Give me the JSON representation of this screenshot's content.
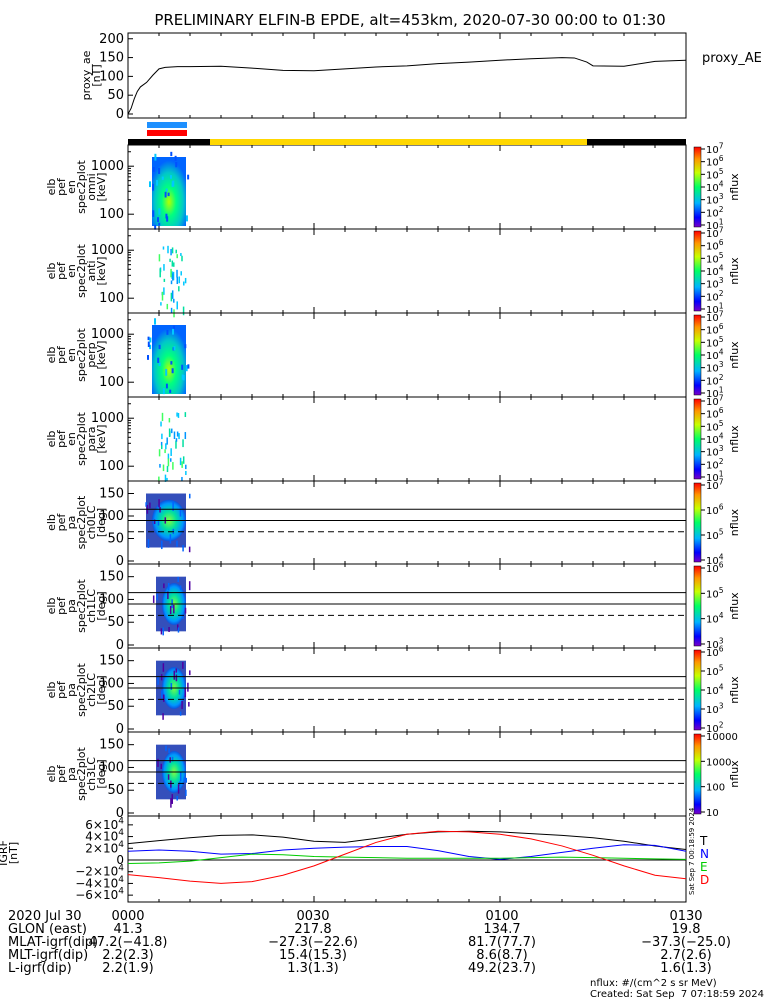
{
  "title": "PRELIMINARY ELFIN-B EPDE, alt=453km, 2020-07-30 00:00 to 01:30",
  "chart_data": [
    {
      "type": "line",
      "ylabel": [
        "proxy_ae",
        "[nT]"
      ],
      "legend": "proxy_AE",
      "yticks": [
        "0",
        "50",
        "100",
        "150",
        "200"
      ],
      "ylim": [
        0,
        210
      ],
      "xlim_min": [
        0,
        90
      ],
      "series": [
        {
          "name": "proxy_AE",
          "x": [
            0,
            0.5,
            1,
            1.5,
            2,
            3,
            4,
            5,
            6,
            7,
            8,
            10,
            15,
            20,
            25,
            30,
            35,
            40,
            45,
            50,
            55,
            60,
            65,
            70,
            72,
            74,
            75,
            80,
            85,
            90
          ],
          "y": [
            0,
            15,
            40,
            60,
            72,
            84,
            103,
            120,
            124,
            125,
            126,
            126,
            127,
            122,
            116,
            115,
            120,
            125,
            128,
            134,
            138,
            143,
            147,
            150,
            149,
            138,
            128,
            127,
            140,
            143
          ]
        }
      ]
    },
    {
      "type": "spectrogram",
      "ylabel": [
        "elb",
        "pef",
        "en",
        "spec2plot",
        "omni",
        "[keV]"
      ],
      "yticks": [
        "100",
        "1000"
      ],
      "cbar_ticks": [
        "10^1",
        "10^2",
        "10^3",
        "10^4",
        "10^5",
        "10^6",
        "10^7"
      ],
      "cbar_label": "nflux"
    },
    {
      "type": "spectrogram",
      "ylabel": [
        "elb",
        "pef",
        "en",
        "spec2plot",
        "anti",
        "[keV]"
      ],
      "yticks": [
        "100",
        "1000"
      ],
      "cbar_ticks": [
        "10^1",
        "10^2",
        "10^3",
        "10^4",
        "10^5",
        "10^6",
        "10^7"
      ],
      "cbar_label": "nflux"
    },
    {
      "type": "spectrogram",
      "ylabel": [
        "elb",
        "pef",
        "en",
        "spec2plot",
        "perp",
        "[keV]"
      ],
      "yticks": [
        "100",
        "1000"
      ],
      "cbar_ticks": [
        "10^1",
        "10^2",
        "10^3",
        "10^4",
        "10^5",
        "10^6",
        "10^7"
      ],
      "cbar_label": "nflux"
    },
    {
      "type": "spectrogram",
      "ylabel": [
        "elb",
        "pef",
        "en",
        "spec2plot",
        "para",
        "[keV]"
      ],
      "yticks": [
        "100",
        "1000"
      ],
      "cbar_ticks": [
        "10^1",
        "10^2",
        "10^3",
        "10^4",
        "10^5",
        "10^6",
        "10^7"
      ],
      "cbar_label": "nflux"
    },
    {
      "type": "spectrogram",
      "ylabel": [
        "elb",
        "pef",
        "pa",
        "spec2plot",
        "ch0LC",
        "[deg]"
      ],
      "yticks": [
        "0",
        "50",
        "100",
        "150"
      ],
      "cbar_ticks": [
        "10^4",
        "10^5",
        "10^6",
        "10^7"
      ],
      "cbar_label": "nflux",
      "reference_lines_deg": [
        115,
        90,
        65
      ]
    },
    {
      "type": "spectrogram",
      "ylabel": [
        "elb",
        "pef",
        "pa",
        "spec2plot",
        "ch1LC",
        "[deg]"
      ],
      "yticks": [
        "0",
        "50",
        "100",
        "150"
      ],
      "cbar_ticks": [
        "10^3",
        "10^4",
        "10^5",
        "10^6"
      ],
      "cbar_label": "nflux",
      "reference_lines_deg": [
        115,
        90,
        65
      ]
    },
    {
      "type": "spectrogram",
      "ylabel": [
        "elb",
        "pef",
        "pa",
        "spec2plot",
        "ch2LC",
        "[deg]"
      ],
      "yticks": [
        "0",
        "50",
        "100",
        "150"
      ],
      "cbar_ticks": [
        "10^2",
        "10^3",
        "10^4",
        "10^5",
        "10^6"
      ],
      "cbar_label": "nflux",
      "reference_lines_deg": [
        115,
        90,
        65
      ]
    },
    {
      "type": "spectrogram",
      "ylabel": [
        "elb",
        "pef",
        "pa",
        "spec2plot",
        "ch3LC",
        "[deg]"
      ],
      "yticks": [
        "0",
        "50",
        "100",
        "150"
      ],
      "cbar_ticks": [
        "10",
        "100",
        "1000",
        "10000"
      ],
      "cbar_label": "nflux",
      "reference_lines_deg": [
        115,
        90,
        65
      ]
    },
    {
      "type": "line",
      "ylabel": [
        "IGRF",
        "[nT]"
      ],
      "yticks": [
        "−6×10^4",
        "−4×10^4",
        "−2×10^4",
        "0",
        "2×10^4",
        "4×10^4",
        "6×10^4"
      ],
      "ylim": [
        -70000,
        70000
      ],
      "legend": [
        "T",
        "N",
        "E",
        "D"
      ],
      "colors": [
        "#000000",
        "#0000ff",
        "#00cc00",
        "#ff0000"
      ],
      "x": [
        0,
        5,
        10,
        15,
        20,
        25,
        30,
        35,
        40,
        45,
        50,
        55,
        60,
        65,
        70,
        75,
        80,
        85,
        90
      ],
      "series": [
        {
          "name": "T",
          "y": [
            28000,
            33000,
            38000,
            42000,
            43000,
            39000,
            32000,
            30000,
            37000,
            44000,
            48000,
            49000,
            48000,
            45000,
            42000,
            38000,
            32000,
            24000,
            18000
          ]
        },
        {
          "name": "N",
          "y": [
            15000,
            17000,
            15000,
            10000,
            11000,
            17000,
            20000,
            22000,
            23000,
            23000,
            16000,
            6000,
            1000,
            6000,
            13000,
            20000,
            26000,
            25000,
            15000
          ]
        },
        {
          "name": "E",
          "y": [
            -6000,
            -5000,
            -2000,
            4000,
            10000,
            9000,
            6000,
            5000,
            4000,
            3000,
            3000,
            3000,
            3000,
            4000,
            5000,
            4000,
            3000,
            2000,
            1000
          ]
        },
        {
          "name": "D",
          "y": [
            -25000,
            -30000,
            -36000,
            -40000,
            -37000,
            -26000,
            -10000,
            10000,
            30000,
            44000,
            49000,
            48000,
            44000,
            36000,
            24000,
            8000,
            -10000,
            -26000,
            -32000
          ]
        }
      ]
    }
  ],
  "bars": {
    "blue": "#1e90ff",
    "red": "#ff0000",
    "black": "#000000",
    "yellow": "#ffd700"
  },
  "footer": {
    "rows": [
      {
        "label": "2020 Jul 30",
        "vals": [
          "0000",
          "0030",
          "0100",
          "0130"
        ]
      },
      {
        "label": "GLON (east)",
        "vals": [
          "41.3",
          "217.8",
          "134.7",
          "19.8"
        ]
      },
      {
        "label": "MLAT-igrf(dip)",
        "vals": [
          "47.2(−41.8)",
          "−27.3(−22.6)",
          "81.7(77.7)",
          "−37.3(−25.0)"
        ]
      },
      {
        "label": "MLT-igrf(dip)",
        "vals": [
          "2.2(2.3)",
          "15.4(15.3)",
          "8.6(8.7)",
          "2.7(2.6)"
        ]
      },
      {
        "label": "L-igrf(dip)",
        "vals": [
          "2.2(1.9)",
          "1.3(1.3)",
          "49.2(23.7)",
          "1.6(1.3)"
        ]
      }
    ],
    "units": "nflux: #/(cm^2 s sr MeV)",
    "created": "Created: Sat Sep  7 07:18:59 2024",
    "side_stamp": "Sat Sep  7 00:18:59 2024"
  }
}
